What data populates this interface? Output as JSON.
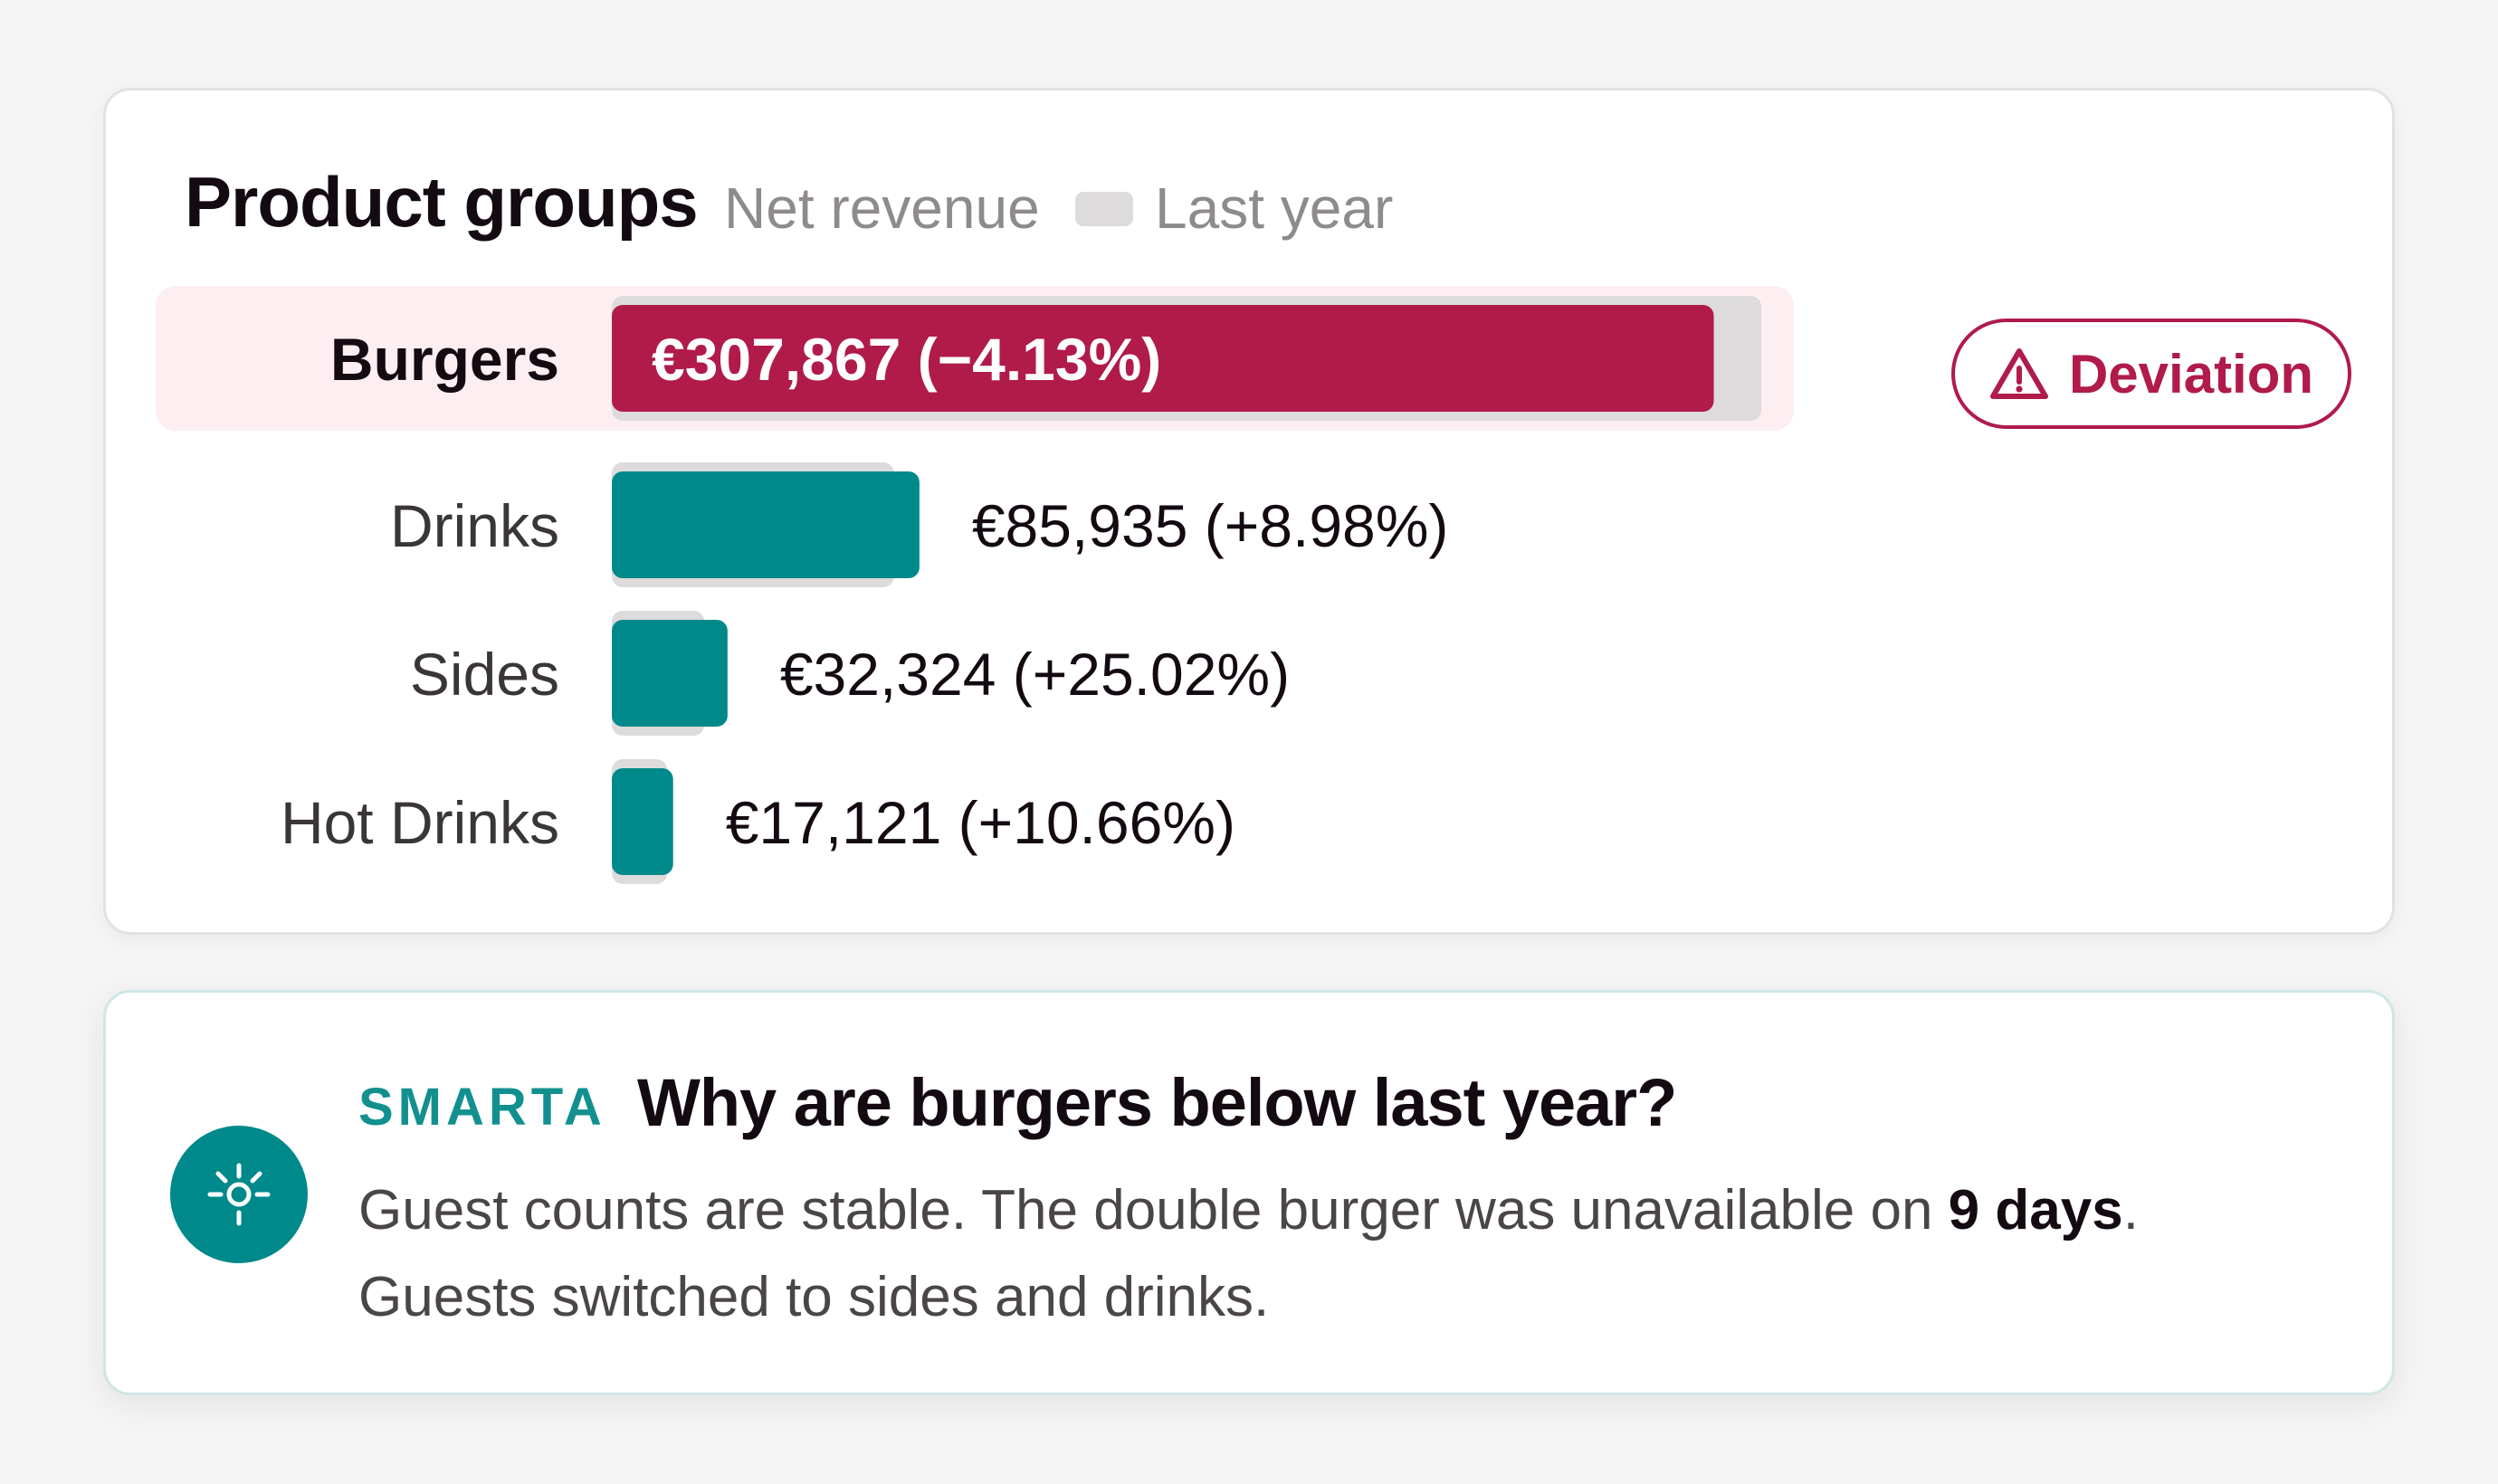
{
  "header": {
    "title": "Product groups",
    "metric": "Net revenue",
    "legend_last_year": "Last year"
  },
  "chart_data": {
    "type": "bar",
    "orientation": "horizontal",
    "categories": [
      "Burgers",
      "Drinks",
      "Sides",
      "Hot Drinks"
    ],
    "series": [
      {
        "name": "Net revenue",
        "values": [
          307867,
          85935,
          32324,
          17121
        ]
      },
      {
        "name": "Last year",
        "values": [
          321134,
          78853,
          25855,
          15472
        ]
      }
    ],
    "value_labels": [
      "€307,867 (−4.13%)",
      "€85,935 (+8.98%)",
      "€32,324 (+25.02%)",
      "€17,121 (+10.66%)"
    ],
    "highlighted_category": "Burgers",
    "colors": {
      "current": "#00898a",
      "current_highlight": "#b01b4a",
      "last_year": "#dddbdc",
      "highlight_row": "#fdeef2"
    },
    "xlim": [
      0,
      321134
    ],
    "grid": false,
    "legend_position": "top"
  },
  "badge": {
    "label": "Deviation",
    "icon": "warning-triangle-icon"
  },
  "insight": {
    "brand": "SMARTA",
    "question": "Why are burgers below last year?",
    "body_before": "Guest counts are stable. The double burger was unavailable on ",
    "body_bold": "9 days",
    "body_after": ". Guests switched to sides and drinks.",
    "icon": "lightbulb-icon"
  }
}
